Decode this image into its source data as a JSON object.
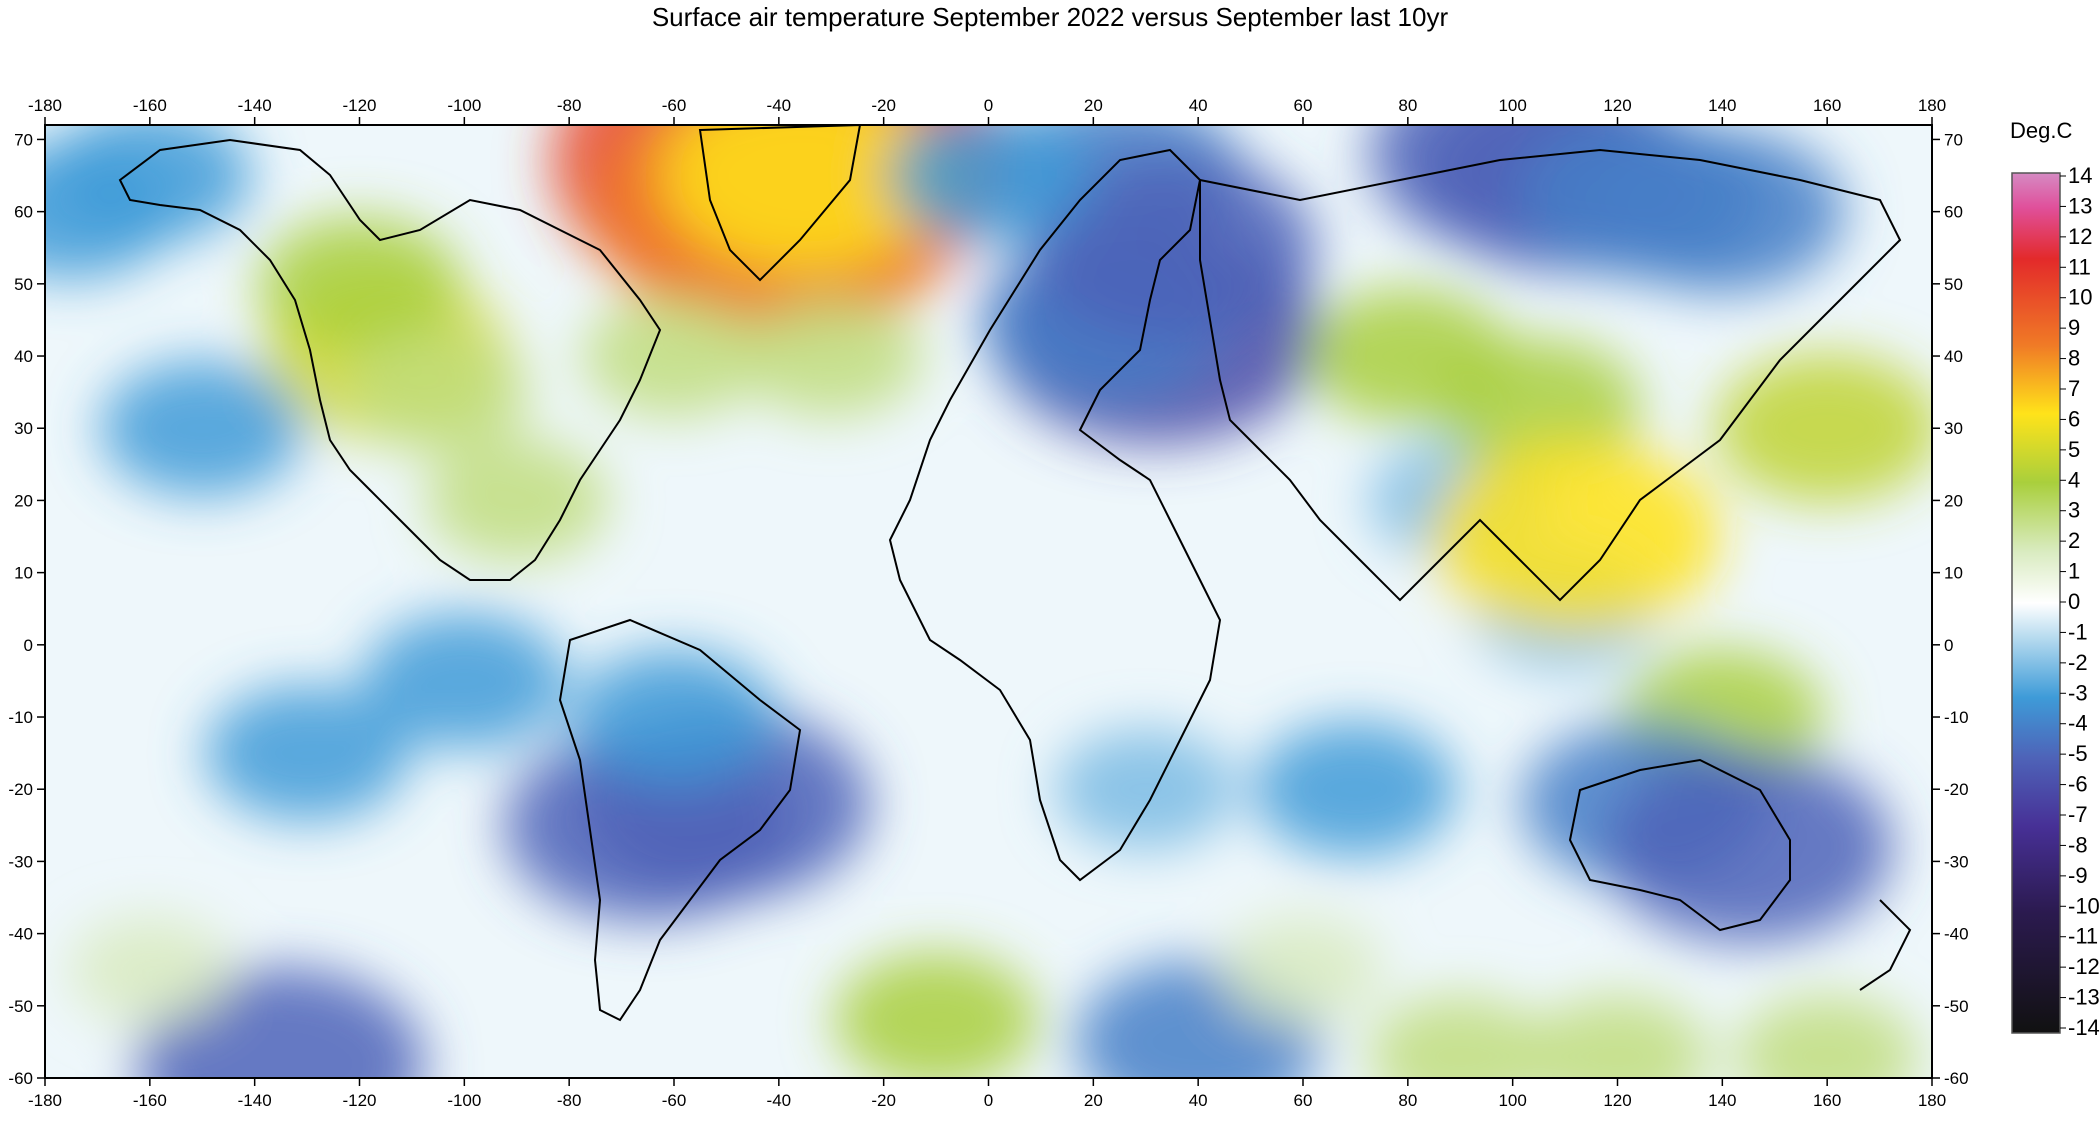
{
  "title": "Surface air temperature September 2022 versus September last 10yr",
  "chart_data": {
    "type": "heatmap",
    "title": "Surface air temperature September 2022 versus September last 10yr",
    "xlim": [
      -180,
      180
    ],
    "ylim": [
      -60,
      72
    ],
    "x_ticks": [
      -180,
      -160,
      -140,
      -120,
      -100,
      -80,
      -60,
      -40,
      -20,
      0,
      20,
      40,
      60,
      80,
      100,
      120,
      140,
      160,
      180
    ],
    "y_ticks": [
      70,
      60,
      50,
      40,
      30,
      20,
      10,
      0,
      -10,
      -20,
      -30,
      -40,
      -50,
      -60
    ],
    "colorbar": {
      "unit": "Deg.C",
      "range": [
        -14,
        14
      ],
      "labels": [
        "14",
        "13",
        "12",
        "11",
        "10",
        "9",
        "8",
        "7",
        "6",
        "5",
        "4",
        "3",
        "2",
        "1",
        "0",
        "-1",
        "-2",
        "-3",
        "-4",
        "-5",
        "-6",
        "-7",
        "-8",
        "-9",
        "-10",
        "-11",
        "-12",
        "-13",
        "-14"
      ]
    },
    "anomalies": [
      {
        "lon": -40,
        "lat": 67,
        "value": 8
      },
      {
        "lon": -40,
        "lat": 60,
        "value": 6
      },
      {
        "lon": -35,
        "lat": 65,
        "value": 4
      },
      {
        "lon": -115,
        "lat": 40,
        "value": 3
      },
      {
        "lon": -120,
        "lat": 50,
        "value": 2
      },
      {
        "lon": -105,
        "lat": 35,
        "value": 1.5
      },
      {
        "lon": -90,
        "lat": 20,
        "value": 1.5
      },
      {
        "lon": -60,
        "lat": 40,
        "value": 1.5
      },
      {
        "lon": -30,
        "lat": 40,
        "value": 1.5
      },
      {
        "lon": -160,
        "lat": 65,
        "value": -2
      },
      {
        "lon": -175,
        "lat": 60,
        "value": -2
      },
      {
        "lon": -150,
        "lat": 30,
        "value": -2
      },
      {
        "lon": -130,
        "lat": -15,
        "value": -2
      },
      {
        "lon": -100,
        "lat": -5,
        "value": -2
      },
      {
        "lon": -135,
        "lat": -58,
        "value": -4
      },
      {
        "lon": -65,
        "lat": -25,
        "value": -4
      },
      {
        "lon": -50,
        "lat": -22,
        "value": -4
      },
      {
        "lon": -60,
        "lat": -10,
        "value": -2
      },
      {
        "lon": 25,
        "lat": 65,
        "value": -3
      },
      {
        "lon": 32,
        "lat": 43,
        "value": -5
      },
      {
        "lon": 22,
        "lat": 45,
        "value": -3
      },
      {
        "lon": 35,
        "lat": 55,
        "value": -4
      },
      {
        "lon": 0,
        "lat": 65,
        "value": -2
      },
      {
        "lon": 30,
        "lat": -20,
        "value": -1.5
      },
      {
        "lon": 70,
        "lat": -20,
        "value": -2
      },
      {
        "lon": 40,
        "lat": -55,
        "value": -3
      },
      {
        "lon": 110,
        "lat": 65,
        "value": -4
      },
      {
        "lon": 100,
        "lat": 68,
        "value": -4
      },
      {
        "lon": 125,
        "lat": 62,
        "value": -3
      },
      {
        "lon": 140,
        "lat": 60,
        "value": -3
      },
      {
        "lon": 90,
        "lat": 20,
        "value": -1.5
      },
      {
        "lon": 110,
        "lat": 5,
        "value": -1.5
      },
      {
        "lon": 80,
        "lat": 40,
        "value": 2
      },
      {
        "lon": 105,
        "lat": 33,
        "value": 2
      },
      {
        "lon": 160,
        "lat": 30,
        "value": 2.5
      },
      {
        "lon": 112,
        "lat": 15,
        "value": 4
      },
      {
        "lon": 140,
        "lat": -10,
        "value": 2
      },
      {
        "lon": 125,
        "lat": -22,
        "value": -3
      },
      {
        "lon": 145,
        "lat": -28,
        "value": -4
      },
      {
        "lon": -10,
        "lat": -52,
        "value": 2
      },
      {
        "lon": 90,
        "lat": -57,
        "value": 1.5
      },
      {
        "lon": 120,
        "lat": -57,
        "value": 1.5
      },
      {
        "lon": 160,
        "lat": -57,
        "value": 1.5
      },
      {
        "lon": -160,
        "lat": -45,
        "value": 1
      },
      {
        "lon": 60,
        "lat": -45,
        "value": 1
      }
    ]
  }
}
